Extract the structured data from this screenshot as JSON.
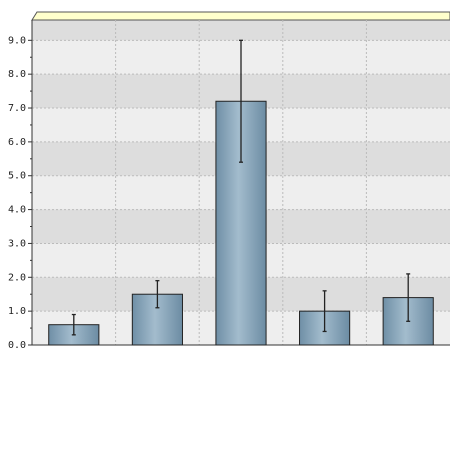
{
  "chart_data": {
    "type": "bar",
    "categories": [
      null,
      null,
      null,
      null,
      null
    ],
    "values": [
      0.6,
      1.5,
      7.2,
      1.0,
      1.4
    ],
    "errors": [
      0.3,
      0.4,
      1.8,
      0.6,
      0.7
    ],
    "color": "#7f9fb5",
    "ylim": [
      0,
      9.6
    ],
    "yticks": [
      {
        "value": 0,
        "label": "0.0"
      },
      {
        "value": 1,
        "label": "1.0"
      },
      {
        "value": 2,
        "label": "2.0"
      },
      {
        "value": 3,
        "label": "3.0"
      },
      {
        "value": 4,
        "label": "4.0"
      },
      {
        "value": 5,
        "label": "5.0"
      },
      {
        "value": 6,
        "label": "6.0"
      },
      {
        "value": 7,
        "label": "7.0"
      },
      {
        "value": 8,
        "label": "8.0"
      },
      {
        "value": 9,
        "label": "9.0"
      }
    ],
    "grid": true
  }
}
